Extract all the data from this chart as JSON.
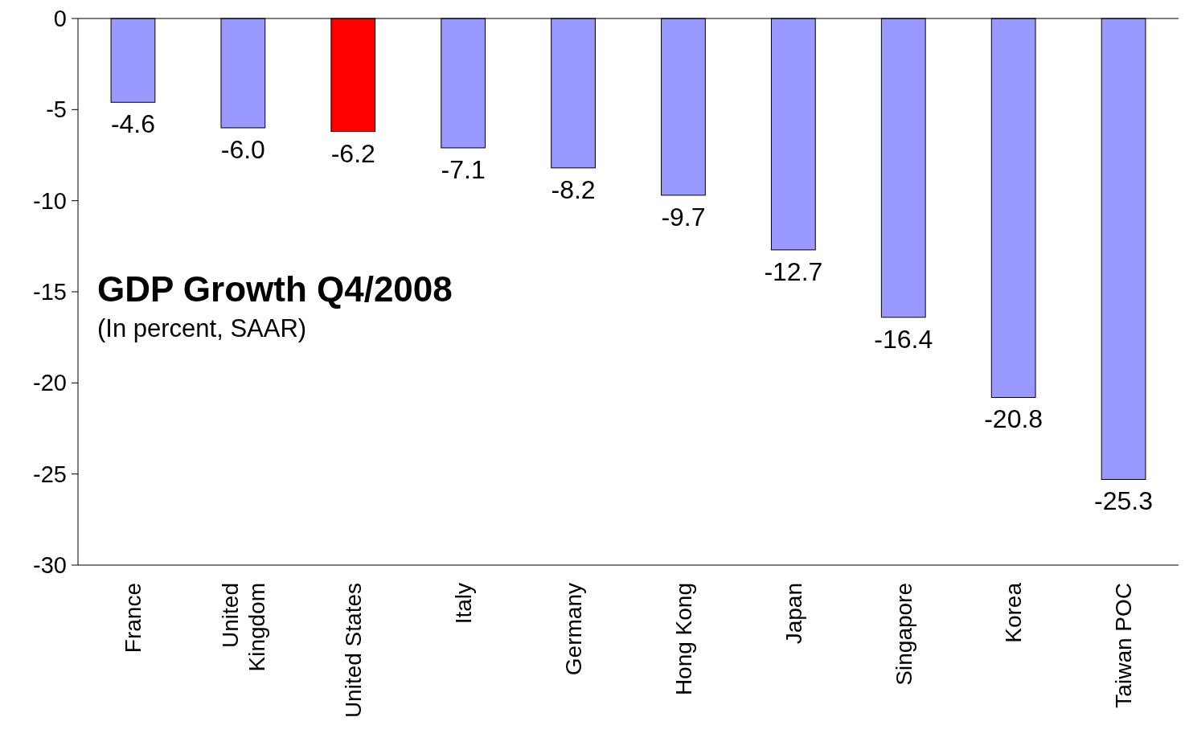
{
  "chart_data": {
    "type": "bar",
    "title": "GDP Growth Q4/2008",
    "subtitle": "(In percent, SAAR)",
    "categories": [
      "France",
      "United\nKingdom",
      "United States",
      "Italy",
      "Germany",
      "Hong Kong",
      "Japan",
      "Singapore",
      "Korea",
      "Taiwan POC"
    ],
    "values": [
      -4.6,
      -6.0,
      -6.2,
      -7.1,
      -8.2,
      -9.7,
      -12.7,
      -16.4,
      -20.8,
      -25.3
    ],
    "colors": [
      "#9999ff",
      "#9999ff",
      "#ff0000",
      "#9999ff",
      "#9999ff",
      "#9999ff",
      "#9999ff",
      "#9999ff",
      "#9999ff",
      "#9999ff"
    ],
    "value_labels": [
      "-4.6",
      "-6.0",
      "-6.2",
      "-7.1",
      "-8.2",
      "-9.7",
      "-12.7",
      "-16.4",
      "-20.8",
      "-25.3"
    ],
    "ylim": [
      -30,
      0
    ],
    "yticks": [
      0,
      -5,
      -10,
      -15,
      -20,
      -25,
      -30
    ],
    "grid": false
  }
}
